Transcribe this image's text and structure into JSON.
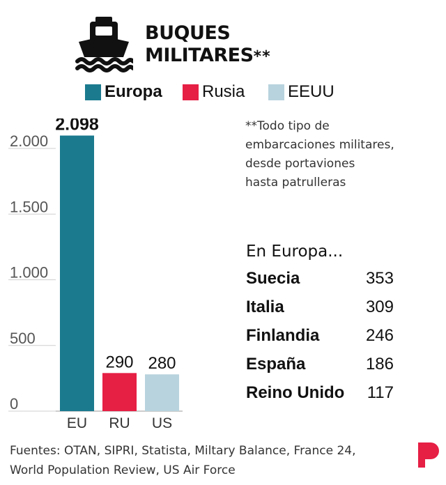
{
  "header": {
    "title_line1": "BUQUES",
    "title_line2": "MILITARES",
    "title_mark": "**"
  },
  "legend": [
    {
      "label": "Europa",
      "color": "#1b7a8e",
      "bold": true
    },
    {
      "label": "Rusia",
      "color": "#e61f45",
      "bold": false
    },
    {
      "label": "EEUU",
      "color": "#b8d3de",
      "bold": false
    }
  ],
  "note": {
    "lines": [
      "**Todo tipo de",
      "embarcaciones militares,",
      "desde portaviones",
      "hasta patrulleras"
    ]
  },
  "chart_data": {
    "type": "bar",
    "categories": [
      "EU",
      "RU",
      "US"
    ],
    "values": [
      2098,
      290,
      280
    ],
    "value_labels": [
      "2.098",
      "290",
      "280"
    ],
    "colors": [
      "#1b7a8e",
      "#e61f45",
      "#b8d3de"
    ],
    "yticks": [
      0,
      500,
      1000,
      1500,
      2000
    ],
    "ytick_labels": [
      "0",
      "500",
      "1.000",
      "1.500",
      "2.000"
    ],
    "ylim": [
      0,
      2000
    ],
    "title": "BUQUES MILITARES**",
    "xlabel": "",
    "ylabel": "",
    "grid": true
  },
  "europe": {
    "title": "En Europa...",
    "rows": [
      {
        "country": "Suecia",
        "value": "353"
      },
      {
        "country": "Italia",
        "value": "309"
      },
      {
        "country": "Finlandia",
        "value": "246"
      },
      {
        "country": "España",
        "value": "186"
      },
      {
        "country": "Reino Unido",
        "value": "117"
      }
    ]
  },
  "footer": {
    "line1": "Fuentes: OTAN, SIPRI, Statista, Miltary Balance, France 24,",
    "line2": "World Population Review, US Air Force"
  },
  "icons": {
    "header": "ship-icon",
    "brand": "brand-logo"
  }
}
